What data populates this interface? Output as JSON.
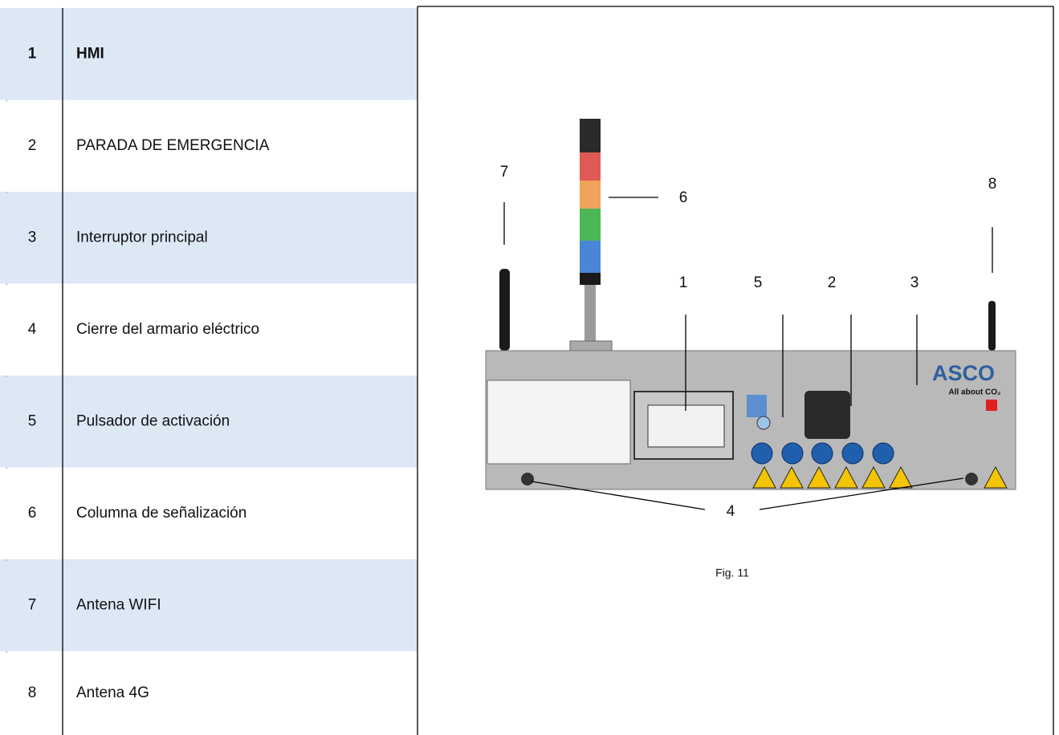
{
  "table": {
    "rows": [
      [
        "1",
        "HMI"
      ],
      [
        "2",
        "PARADA DE EMERGENCIA"
      ],
      [
        "3",
        "Interruptor principal"
      ],
      [
        "4",
        "Cierre del armario eléctrico"
      ],
      [
        "5",
        "Pulsador de activación"
      ],
      [
        "6",
        "Columna de señalización"
      ],
      [
        "7",
        "Antena WIFI"
      ],
      [
        "8",
        "Antena 4G"
      ]
    ]
  },
  "figure": {
    "callouts": [
      "1",
      "2",
      "3",
      "4",
      "5",
      "6",
      "7",
      "8"
    ],
    "logo": "ASCO",
    "tagline": "All about CO₂",
    "caption": "Fig. 11"
  }
}
